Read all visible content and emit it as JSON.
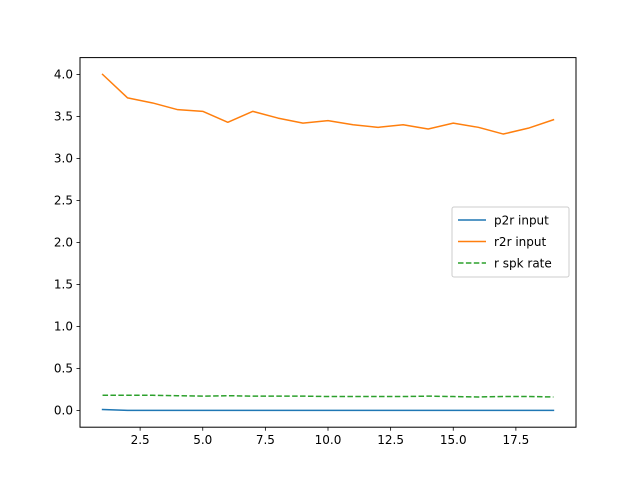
{
  "chart_data": {
    "type": "line",
    "title": "",
    "xlabel": "",
    "ylabel": "",
    "xlim": [
      0.1,
      19.9
    ],
    "ylim": [
      -0.2,
      4.2
    ],
    "xticks": [
      2.5,
      5.0,
      7.5,
      10.0,
      12.5,
      15.0,
      17.5
    ],
    "xtick_labels": [
      "2.5",
      "5.0",
      "7.5",
      "10.0",
      "12.5",
      "15.0",
      "17.5"
    ],
    "yticks": [
      0.0,
      0.5,
      1.0,
      1.5,
      2.0,
      2.5,
      3.0,
      3.5,
      4.0
    ],
    "ytick_labels": [
      "0.0",
      "0.5",
      "1.0",
      "1.5",
      "2.0",
      "2.5",
      "3.0",
      "3.5",
      "4.0"
    ],
    "grid": false,
    "legend_position": "center-right",
    "x": [
      1,
      2,
      3,
      4,
      5,
      6,
      7,
      8,
      9,
      10,
      11,
      12,
      13,
      14,
      15,
      16,
      17,
      18,
      19
    ],
    "series": [
      {
        "name": "p2r input",
        "color": "#1f77b4",
        "dash": "solid",
        "values": [
          0.01,
          0.0,
          0.0,
          0.0,
          0.0,
          0.0,
          0.0,
          0.0,
          0.0,
          0.0,
          0.0,
          0.0,
          0.0,
          0.0,
          0.0,
          0.0,
          0.0,
          0.0,
          0.0
        ]
      },
      {
        "name": "r2r input",
        "color": "#ff7f0e",
        "dash": "solid",
        "values": [
          4.0,
          3.72,
          3.66,
          3.58,
          3.56,
          3.43,
          3.56,
          3.48,
          3.42,
          3.45,
          3.4,
          3.37,
          3.4,
          3.35,
          3.42,
          3.37,
          3.29,
          3.36,
          3.46
        ]
      },
      {
        "name": "r spk rate",
        "color": "#2ca02c",
        "dash": "dashed",
        "values": [
          0.18,
          0.18,
          0.18,
          0.175,
          0.17,
          0.175,
          0.17,
          0.17,
          0.17,
          0.165,
          0.165,
          0.165,
          0.165,
          0.17,
          0.165,
          0.16,
          0.165,
          0.165,
          0.16
        ]
      }
    ]
  }
}
